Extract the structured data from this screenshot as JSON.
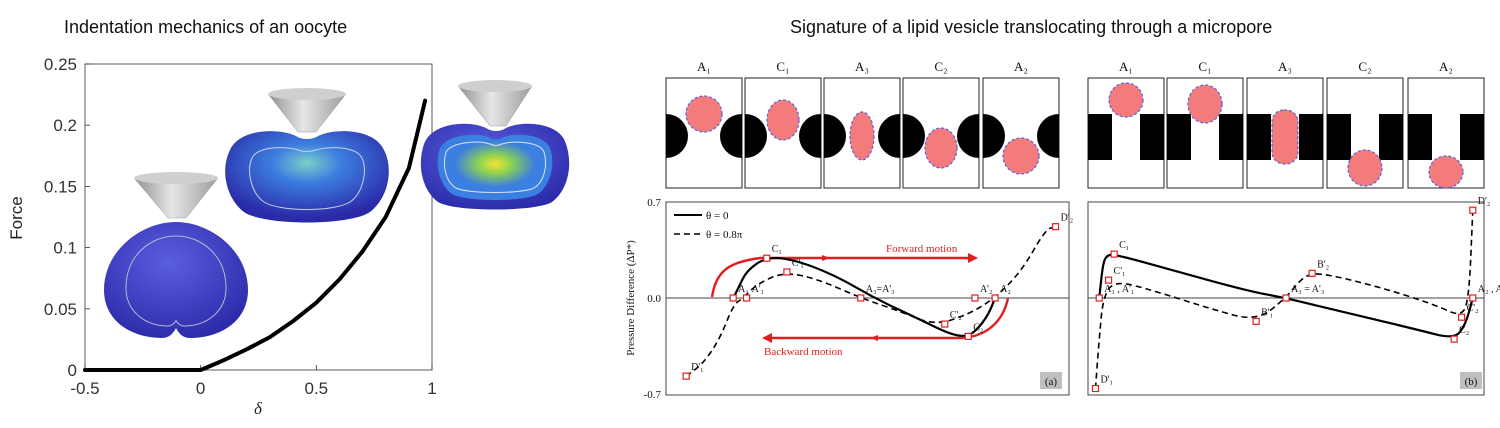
{
  "titles": {
    "left": "Indentation mechanics of an oocyte",
    "right": "Signature of a lipid vesicle translocating through a micropore"
  },
  "chart_data": [
    {
      "type": "line",
      "ylabel": "Force",
      "xlabel": "δ",
      "xlim": [
        -0.5,
        1.0
      ],
      "ylim": [
        0,
        0.25
      ],
      "x_ticks": [
        "-0.5",
        "0",
        "0.5",
        "1"
      ],
      "y_ticks": [
        "0",
        "0.05",
        "0.1",
        "0.15",
        "0.2",
        "0.25"
      ],
      "x": [
        -0.5,
        -0.3,
        -0.1,
        0.0,
        0.05,
        0.1,
        0.2,
        0.3,
        0.4,
        0.5,
        0.6,
        0.7,
        0.8,
        0.9,
        0.97
      ],
      "y": [
        0,
        0,
        0,
        0,
        0.004,
        0.008,
        0.017,
        0.027,
        0.04,
        0.055,
        0.074,
        0.097,
        0.125,
        0.165,
        0.22
      ],
      "line_color": "#000000"
    },
    {
      "type": "line",
      "panel_label": "(a)",
      "ylabel": "Pressure Difference (ΔP*)",
      "ylim": [
        -0.7,
        0.7
      ],
      "y_ticks": [
        "0.7",
        "0.0",
        "-0.7"
      ],
      "legend": [
        "θ = 0",
        "θ = 0.8π"
      ],
      "series": [
        {
          "name": "θ = 0",
          "style": "solid",
          "x": [
            0.0,
            0.015,
            0.04,
            0.1,
            0.18,
            0.3,
            0.42,
            0.55,
            0.65,
            0.7,
            0.73,
            0.76,
            0.78
          ],
          "y": [
            0.0,
            0.07,
            0.2,
            0.3,
            0.28,
            0.17,
            0.0,
            -0.15,
            -0.27,
            -0.28,
            -0.22,
            -0.12,
            0.0
          ]
        },
        {
          "name": "θ = 0.8π",
          "style": "dashed",
          "x": [
            -0.14,
            -0.09,
            -0.04,
            0.0,
            0.03,
            0.07,
            0.15,
            0.25,
            0.38,
            0.5,
            0.6,
            0.7,
            0.78,
            0.86,
            0.93,
            0.96
          ],
          "y": [
            -0.57,
            -0.48,
            -0.3,
            -0.05,
            0.0,
            0.1,
            0.19,
            0.14,
            0.0,
            -0.1,
            -0.2,
            -0.12,
            0.0,
            0.2,
            0.5,
            0.52
          ]
        }
      ],
      "points": [
        {
          "label": "A₁",
          "x": 0.0,
          "y": 0.0
        },
        {
          "label": "C₁",
          "x": 0.1,
          "y": 0.29
        },
        {
          "label": "C'₁",
          "x": 0.16,
          "y": 0.19
        },
        {
          "label": "A'₁",
          "x": 0.04,
          "y": 0.0
        },
        {
          "label": "A₃=A'₃",
          "x": 0.38,
          "y": 0.0
        },
        {
          "label": "C'₂",
          "x": 0.63,
          "y": -0.19
        },
        {
          "label": "C₂",
          "x": 0.7,
          "y": -0.28
        },
        {
          "label": "A'₂",
          "x": 0.72,
          "y": 0.0
        },
        {
          "label": "A₂",
          "x": 0.78,
          "y": 0.0
        },
        {
          "label": "D'₁",
          "x": -0.14,
          "y": -0.57
        },
        {
          "label": "D'₂",
          "x": 0.96,
          "y": 0.52
        }
      ],
      "annotations": [
        "Forward motion",
        "Backward motion"
      ]
    },
    {
      "type": "line",
      "panel_label": "(b)",
      "series": [
        {
          "name": "θ = 0",
          "style": "solid",
          "x": [
            0.0,
            0.01,
            0.02,
            0.04,
            0.2,
            0.4,
            0.5,
            0.65,
            0.85,
            0.95,
            0.98,
            1.0
          ],
          "y": [
            0.0,
            0.25,
            0.31,
            0.32,
            0.2,
            0.05,
            0.0,
            -0.1,
            -0.23,
            -0.3,
            -0.2,
            0.0
          ]
        },
        {
          "name": "θ = 0.8π",
          "style": "dashed",
          "x": [
            -0.01,
            0.0,
            0.01,
            0.04,
            0.15,
            0.3,
            0.42,
            0.5,
            0.55,
            0.6,
            0.75,
            0.9,
            0.97,
            0.99,
            1.0
          ],
          "y": [
            -0.66,
            -0.3,
            0.0,
            0.13,
            0.05,
            -0.08,
            -0.17,
            0.0,
            0.17,
            0.18,
            0.08,
            -0.05,
            -0.14,
            0.0,
            0.64
          ]
        }
      ],
      "points": [
        {
          "label": "C₁",
          "x": 0.04,
          "y": 0.32
        },
        {
          "label": "C'₁",
          "x": 0.025,
          "y": 0.13
        },
        {
          "label": "A₁ , A'₁",
          "x": 0.0,
          "y": 0.0
        },
        {
          "label": "D'₁",
          "x": -0.01,
          "y": -0.66
        },
        {
          "label": "B'₁",
          "x": 0.42,
          "y": -0.17
        },
        {
          "label": "A₃ = A'₃",
          "x": 0.5,
          "y": 0.0
        },
        {
          "label": "B'₂",
          "x": 0.57,
          "y": 0.18
        },
        {
          "label": "A₂ , A'₂",
          "x": 1.0,
          "y": 0.0
        },
        {
          "label": "C'₂",
          "x": 0.97,
          "y": -0.14
        },
        {
          "label": "C₂",
          "x": 0.95,
          "y": -0.3
        },
        {
          "label": "D'₂",
          "x": 1.0,
          "y": 0.64
        }
      ]
    }
  ],
  "stage_panels": {
    "a": [
      "A₁",
      "C₁",
      "A₃",
      "C₂",
      "A₂"
    ],
    "b": [
      "A₁",
      "C₁",
      "A₃",
      "C₂",
      "A₂"
    ]
  },
  "colors": {
    "vesicle": "#f47b7b",
    "vesicle_outline": "#5b62d8",
    "highlight_curve": "#e02020",
    "cell_blue": "#3b3fc8",
    "stress_green": "#7fd34e",
    "stress_yellow": "#f5e23a",
    "indenter_gray": "#b9b9b9"
  }
}
